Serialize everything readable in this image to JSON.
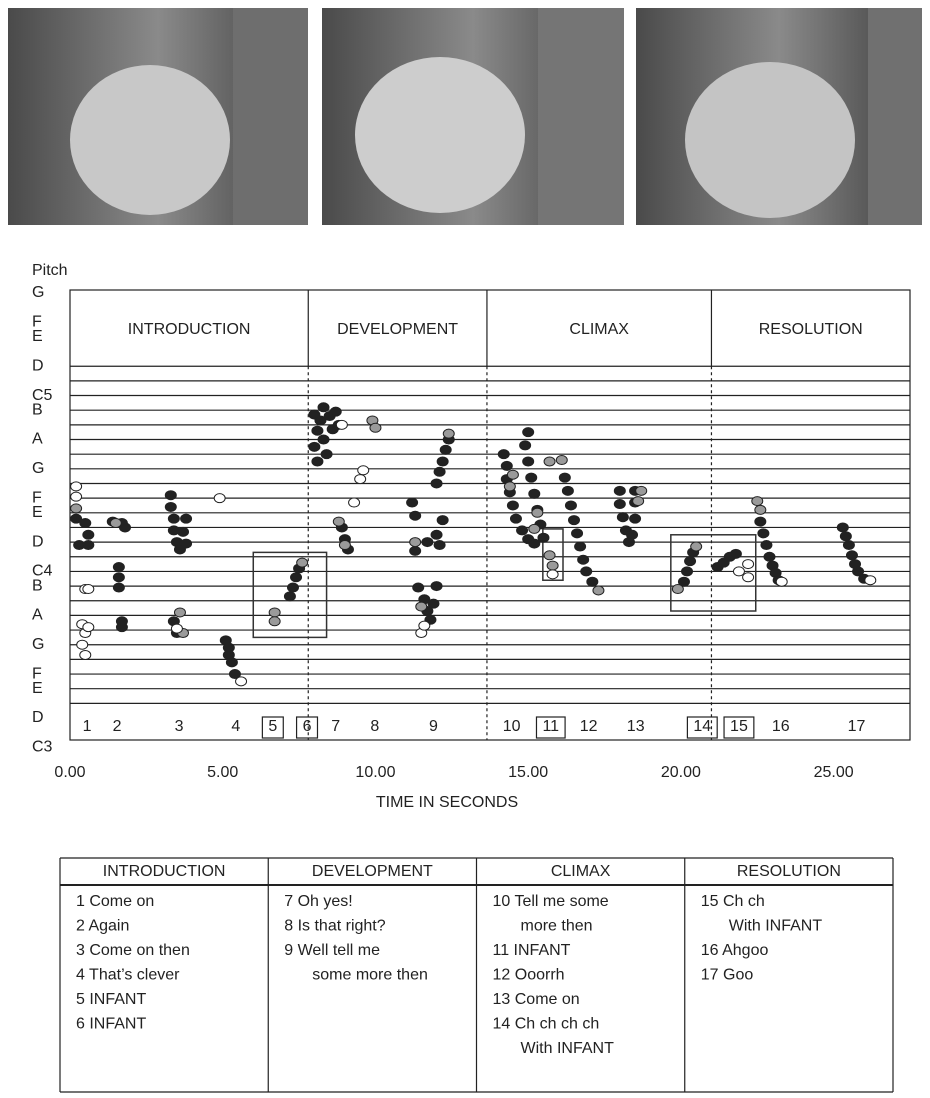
{
  "chart_data": {
    "type": "scatter",
    "ylabel": "Pitch",
    "xlabel": "TIME IN SECONDS",
    "xlim": [
      0,
      27.5
    ],
    "xticks": [
      {
        "value": 0,
        "label": "0.00"
      },
      {
        "value": 5,
        "label": "5.00"
      },
      {
        "value": 10,
        "label": "10.00"
      },
      {
        "value": 15,
        "label": "15.00"
      },
      {
        "value": 20,
        "label": "20.00"
      },
      {
        "value": 25,
        "label": "25.00"
      }
    ],
    "ylim": [
      48.5,
      79.2
    ],
    "yticks": [
      {
        "value": 79,
        "label": "G"
      },
      {
        "value": 77,
        "label": "F"
      },
      {
        "value": 76,
        "label": "E"
      },
      {
        "value": 74,
        "label": "D"
      },
      {
        "value": 72,
        "label": "C5"
      },
      {
        "value": 71,
        "label": "B"
      },
      {
        "value": 69,
        "label": "A"
      },
      {
        "value": 67,
        "label": "G"
      },
      {
        "value": 65,
        "label": "F"
      },
      {
        "value": 64,
        "label": "E"
      },
      {
        "value": 62,
        "label": "D"
      },
      {
        "value": 60,
        "label": "C4"
      },
      {
        "value": 59,
        "label": "B"
      },
      {
        "value": 57,
        "label": "A"
      },
      {
        "value": 55,
        "label": "G"
      },
      {
        "value": 53,
        "label": "F"
      },
      {
        "value": 52,
        "label": "E"
      },
      {
        "value": 50,
        "label": "D"
      },
      {
        "value": 48,
        "label": "C3"
      }
    ],
    "grid_lines": [
      51,
      52,
      53,
      54,
      55,
      56,
      57,
      58,
      59,
      60,
      61,
      62,
      63,
      64,
      65,
      66,
      67,
      68,
      69,
      70,
      71,
      72,
      73,
      74
    ],
    "sections": [
      {
        "name": "INTRODUCTION",
        "start": 0,
        "end": 7.8
      },
      {
        "name": "DEVELOPMENT",
        "start": 7.8,
        "end": 13.65
      },
      {
        "name": "CLIMAX",
        "start": 13.65,
        "end": 21.0
      },
      {
        "name": "RESOLUTION",
        "start": 21.0,
        "end": 27.5
      }
    ],
    "utterances": [
      {
        "label": "1",
        "x": 0.56,
        "boxed": false
      },
      {
        "label": "2",
        "x": 1.54,
        "boxed": false
      },
      {
        "label": "3",
        "x": 3.57,
        "boxed": false
      },
      {
        "label": "4",
        "x": 5.43,
        "boxed": false
      },
      {
        "label": "5",
        "x": 6.64,
        "boxed": true
      },
      {
        "label": "6",
        "x": 7.76,
        "boxed": true
      },
      {
        "label": "7",
        "x": 8.7,
        "boxed": false
      },
      {
        "label": "8",
        "x": 9.98,
        "boxed": false
      },
      {
        "label": "9",
        "x": 11.9,
        "boxed": false
      },
      {
        "label": "10",
        "x": 14.46,
        "boxed": false
      },
      {
        "label": "11",
        "x": 15.74,
        "boxed": true
      },
      {
        "label": "12",
        "x": 16.98,
        "boxed": false
      },
      {
        "label": "13",
        "x": 18.52,
        "boxed": false
      },
      {
        "label": "14",
        "x": 20.7,
        "boxed": true
      },
      {
        "label": "15",
        "x": 21.9,
        "boxed": true
      },
      {
        "label": "16",
        "x": 23.27,
        "boxed": false
      },
      {
        "label": "17",
        "x": 25.75,
        "boxed": false
      }
    ],
    "highlights": [
      {
        "x": [
          6.0,
          8.4
        ],
        "y": [
          55.5,
          61.3
        ]
      },
      {
        "x": [
          15.48,
          16.14
        ],
        "y": [
          59.4,
          62.9
        ]
      },
      {
        "x": [
          19.67,
          22.45
        ],
        "y": [
          57.3,
          62.5
        ]
      }
    ],
    "series": [
      {
        "color": "#222222",
        "x": [
          0.2,
          0.5,
          0.6,
          0.3,
          0.6,
          1.4,
          1.7,
          1.8,
          1.6,
          1.6,
          1.6,
          1.7,
          1.7,
          3.3,
          3.3,
          3.4,
          3.4,
          3.5,
          3.6,
          3.8,
          3.7,
          3.8,
          3.4,
          3.5,
          5.1,
          5.2,
          5.2,
          5.3,
          5.4,
          7.2,
          7.3,
          7.4,
          7.5,
          8.0,
          8.1,
          8.0,
          8.1,
          8.2,
          8.3,
          8.4,
          8.5,
          8.6,
          8.7,
          8.8,
          8.3,
          8.9,
          9.0,
          9.1,
          11.2,
          11.3,
          11.3,
          11.4,
          11.6,
          11.7,
          11.8,
          11.9,
          12.0,
          11.7,
          12.0,
          12.1,
          12.2,
          12.0,
          12.1,
          12.2,
          12.3,
          12.4,
          14.2,
          14.3,
          14.3,
          14.4,
          14.5,
          14.6,
          14.8,
          15.0,
          15.2,
          14.9,
          15.0,
          15.1,
          15.2,
          15.3,
          15.4,
          15.5,
          15.0,
          16.2,
          16.3,
          16.4,
          16.5,
          16.6,
          16.7,
          16.8,
          16.9,
          17.1,
          18.0,
          18.0,
          18.1,
          18.2,
          18.3,
          18.5,
          18.5,
          18.5,
          18.4,
          20.1,
          20.2,
          20.3,
          20.4,
          21.2,
          21.4,
          21.6,
          21.8,
          22.6,
          22.7,
          22.8,
          22.9,
          23.0,
          23.1,
          23.2,
          25.3,
          25.4,
          25.5,
          25.6,
          25.7,
          25.8,
          26.0
        ],
        "values": [
          63.6,
          63.3,
          62.5,
          61.8,
          61.8,
          63.4,
          63.3,
          63.0,
          60.3,
          59.6,
          58.9,
          56.6,
          56.2,
          65.2,
          64.4,
          63.6,
          62.8,
          62.0,
          61.5,
          63.6,
          62.7,
          61.9,
          56.6,
          55.8,
          55.3,
          54.8,
          54.3,
          53.8,
          53.0,
          58.3,
          58.9,
          59.6,
          60.2,
          70.7,
          69.6,
          68.5,
          67.5,
          70.3,
          69.0,
          68.0,
          70.6,
          69.7,
          70.9,
          70.0,
          71.2,
          63.0,
          62.2,
          61.5,
          64.7,
          63.8,
          61.4,
          58.9,
          58.1,
          57.3,
          56.7,
          57.8,
          59.0,
          62.0,
          62.5,
          61.8,
          63.5,
          66.0,
          66.8,
          67.5,
          68.3,
          69.0,
          68.0,
          67.2,
          66.3,
          65.4,
          64.5,
          63.6,
          62.8,
          62.2,
          61.9,
          68.6,
          67.5,
          66.4,
          65.3,
          64.2,
          63.2,
          62.3,
          69.5,
          66.4,
          65.5,
          64.5,
          63.5,
          62.6,
          61.7,
          60.8,
          60.0,
          59.3,
          65.5,
          64.6,
          63.7,
          62.8,
          62.0,
          65.5,
          64.7,
          63.6,
          62.5,
          59.3,
          60.0,
          60.7,
          61.3,
          60.3,
          60.6,
          61.0,
          61.2,
          63.4,
          62.6,
          61.8,
          61.0,
          60.4,
          59.9,
          59.4,
          63.0,
          62.4,
          61.8,
          61.1,
          60.5,
          60.0,
          59.5
        ]
      },
      {
        "color": "#9a9a9a",
        "x": [
          0.2,
          1.5,
          3.6,
          3.7,
          6.7,
          6.7,
          7.6,
          8.8,
          9.0,
          9.9,
          10.0,
          12.4,
          11.3,
          11.5,
          14.4,
          14.5,
          15.2,
          15.3,
          15.7,
          15.7,
          15.8,
          16.1,
          17.3,
          18.7,
          18.6,
          19.9,
          20.5,
          22.5,
          22.6
        ],
        "values": [
          64.3,
          63.3,
          57.2,
          55.8,
          57.2,
          56.6,
          60.6,
          63.4,
          61.8,
          70.3,
          69.8,
          69.4,
          62.0,
          57.6,
          65.8,
          66.6,
          62.9,
          64.0,
          67.5,
          61.1,
          60.4,
          67.6,
          58.7,
          65.5,
          64.8,
          58.8,
          61.7,
          64.8,
          64.2
        ]
      },
      {
        "color": "#ffffff",
        "x": [
          0.2,
          0.2,
          0.5,
          0.6,
          0.4,
          0.5,
          0.4,
          0.5,
          0.6,
          3.5,
          4.9,
          5.6,
          8.9,
          9.6,
          9.5,
          9.3,
          11.5,
          11.6,
          15.8,
          21.9,
          22.2,
          22.2,
          23.3,
          26.2
        ],
        "values": [
          65.8,
          65.1,
          58.8,
          58.8,
          56.4,
          55.8,
          55.0,
          54.3,
          56.2,
          56.1,
          65.0,
          52.5,
          70.0,
          66.9,
          66.3,
          64.7,
          55.8,
          56.3,
          59.8,
          60.0,
          59.6,
          60.5,
          59.3,
          59.4
        ]
      }
    ]
  },
  "table": {
    "columns": [
      {
        "header": "INTRODUCTION",
        "items": [
          [
            "1 Come on"
          ],
          [
            "2 Again"
          ],
          [
            "3 Come on then"
          ],
          [
            "4 That’s clever"
          ],
          [
            "5 INFANT"
          ],
          [
            "6 INFANT"
          ]
        ]
      },
      {
        "header": "DEVELOPMENT",
        "items": [
          [
            "7 Oh yes!"
          ],
          [
            "8 Is that right?"
          ],
          [
            "9 Well tell me",
            "some more then"
          ]
        ]
      },
      {
        "header": "CLIMAX",
        "items": [
          [
            "10 Tell me some",
            "more then"
          ],
          [
            "11 INFANT"
          ],
          [
            "12 Ooorrh"
          ],
          [
            "13 Come on"
          ],
          [
            "14 Ch ch ch ch",
            "With INFANT"
          ]
        ]
      },
      {
        "header": "RESOLUTION",
        "items": [
          [
            "15 Ch ch",
            "With INFANT"
          ],
          [
            "16 Ahgoo"
          ],
          [
            "17 Goo"
          ]
        ]
      }
    ]
  }
}
